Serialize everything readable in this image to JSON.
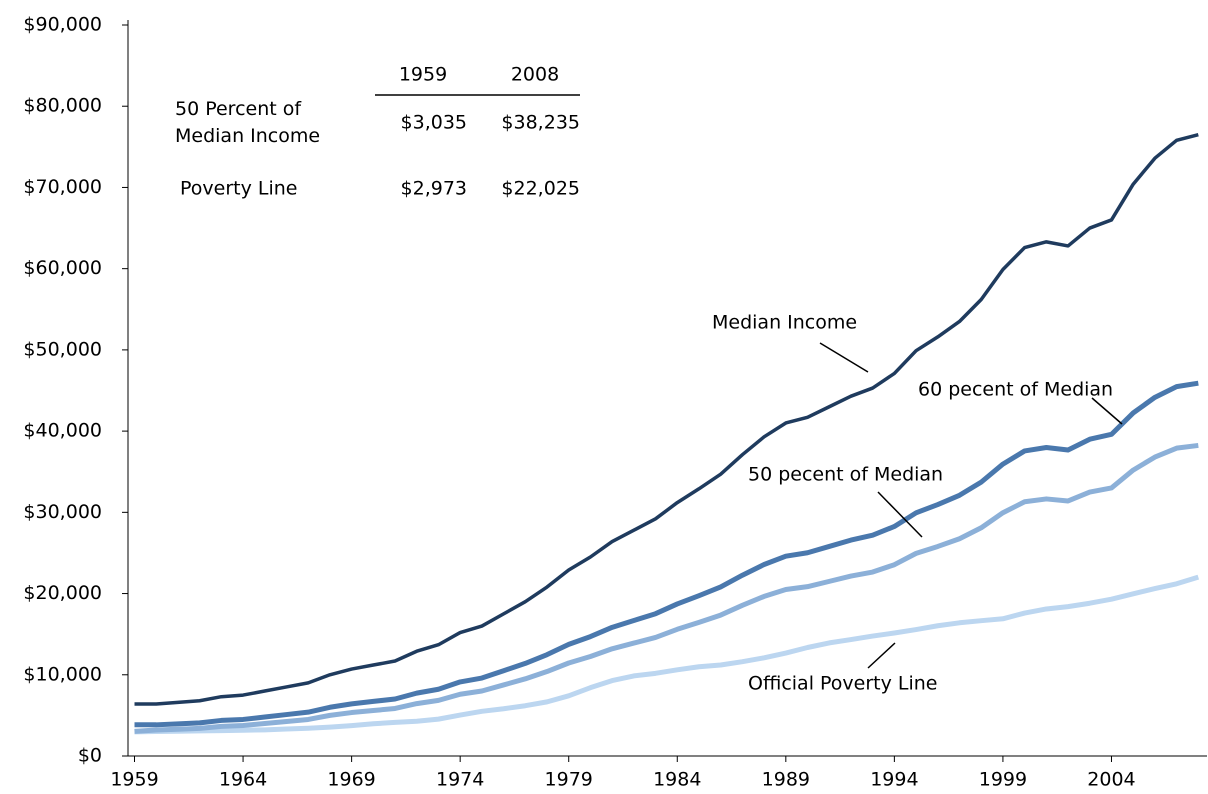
{
  "chart_data": {
    "type": "line",
    "x": [
      1959,
      1960,
      1961,
      1962,
      1963,
      1964,
      1965,
      1966,
      1967,
      1968,
      1969,
      1970,
      1971,
      1972,
      1973,
      1974,
      1975,
      1976,
      1977,
      1978,
      1979,
      1980,
      1981,
      1982,
      1983,
      1984,
      1985,
      1986,
      1987,
      1988,
      1989,
      1990,
      1991,
      1992,
      1993,
      1994,
      1995,
      1996,
      1997,
      1998,
      1999,
      2000,
      2001,
      2002,
      2003,
      2004,
      2005,
      2006,
      2007,
      2008
    ],
    "series": [
      {
        "name": "Median Income",
        "color": "#1f3b5e",
        "values": [
          6400,
          6400,
          6600,
          6800,
          7300,
          7500,
          8000,
          8500,
          9000,
          10000,
          10700,
          11200,
          11700,
          12900,
          13700,
          15200,
          16000,
          17500,
          19000,
          20800,
          22900,
          24500,
          26400,
          27800,
          29200,
          31200,
          32900,
          34700,
          37100,
          39300,
          41000,
          41700,
          43000,
          44300,
          45300,
          47100,
          49900,
          51600,
          53500,
          56200,
          59900,
          62600,
          63300,
          62800,
          65000,
          66000,
          70400,
          73600,
          75800,
          76500
        ]
      },
      {
        "name": "60 pecent of Median",
        "color": "#4a78ad",
        "values": [
          3840,
          3840,
          3960,
          4080,
          4380,
          4500,
          4800,
          5100,
          5400,
          6000,
          6420,
          6720,
          7020,
          7740,
          8220,
          9120,
          9600,
          10500,
          11400,
          12480,
          13740,
          14700,
          15840,
          16680,
          17520,
          18720,
          19740,
          20820,
          22260,
          23580,
          24600,
          25020,
          25800,
          26580,
          27180,
          28260,
          29940,
          30960,
          32100,
          33720,
          35940,
          37560,
          37980,
          37680,
          39000,
          39600,
          42240,
          44160,
          45480,
          45900
        ]
      },
      {
        "name": "50 pecent of Median",
        "color": "#8cb0d8",
        "values": [
          3035,
          3200,
          3300,
          3400,
          3650,
          3750,
          4000,
          4250,
          4500,
          5000,
          5350,
          5600,
          5850,
          6450,
          6850,
          7600,
          8000,
          8750,
          9500,
          10400,
          11450,
          12250,
          13200,
          13900,
          14600,
          15600,
          16450,
          17350,
          18550,
          19650,
          20500,
          20850,
          21500,
          22150,
          22650,
          23550,
          24950,
          25800,
          26750,
          28100,
          29950,
          31300,
          31650,
          31400,
          32500,
          33000,
          35200,
          36800,
          37900,
          38235
        ]
      },
      {
        "name": "Official Poverty Line",
        "color": "#bcd6f0",
        "values": [
          2973,
          3022,
          3054,
          3089,
          3128,
          3169,
          3223,
          3317,
          3410,
          3553,
          3743,
          3968,
          4137,
          4275,
          4540,
          5038,
          5500,
          5815,
          6191,
          6662,
          7412,
          8414,
          9287,
          9862,
          10178,
          10609,
          10989,
          11203,
          11611,
          12092,
          12674,
          13359,
          13924,
          14335,
          14763,
          15141,
          15569,
          16036,
          16400,
          16660,
          16895,
          17603,
          18104,
          18392,
          18810,
          19307,
          19971,
          20614,
          21203,
          22025
        ]
      }
    ],
    "xlim": [
      1958.7,
      2008.4
    ],
    "xticks": [
      1959,
      1964,
      1969,
      1974,
      1979,
      1984,
      1989,
      1994,
      1999,
      2004
    ],
    "ylim": [
      0,
      90000
    ],
    "yticks": [
      {
        "value": 0,
        "label": "$0"
      },
      {
        "value": 10000,
        "label": "$10,000"
      },
      {
        "value": 20000,
        "label": "$20,000"
      },
      {
        "value": 30000,
        "label": "$30,000"
      },
      {
        "value": 40000,
        "label": "$40,000"
      },
      {
        "value": 50000,
        "label": "$50,000"
      },
      {
        "value": 60000,
        "label": "$60,000"
      },
      {
        "value": 70000,
        "label": "$70,000"
      },
      {
        "value": 80000,
        "label": "$80,000"
      },
      {
        "value": 90000,
        "label": "$90,000"
      }
    ],
    "table": {
      "columns": [
        "1959",
        "2008"
      ],
      "rows": [
        {
          "label": [
            "50 Percent of",
            "Median Income"
          ],
          "cells": [
            "$3,035",
            "$38,235"
          ]
        },
        {
          "label": [
            "Poverty Line"
          ],
          "cells": [
            "$2,973",
            "$22,025"
          ]
        }
      ]
    }
  }
}
